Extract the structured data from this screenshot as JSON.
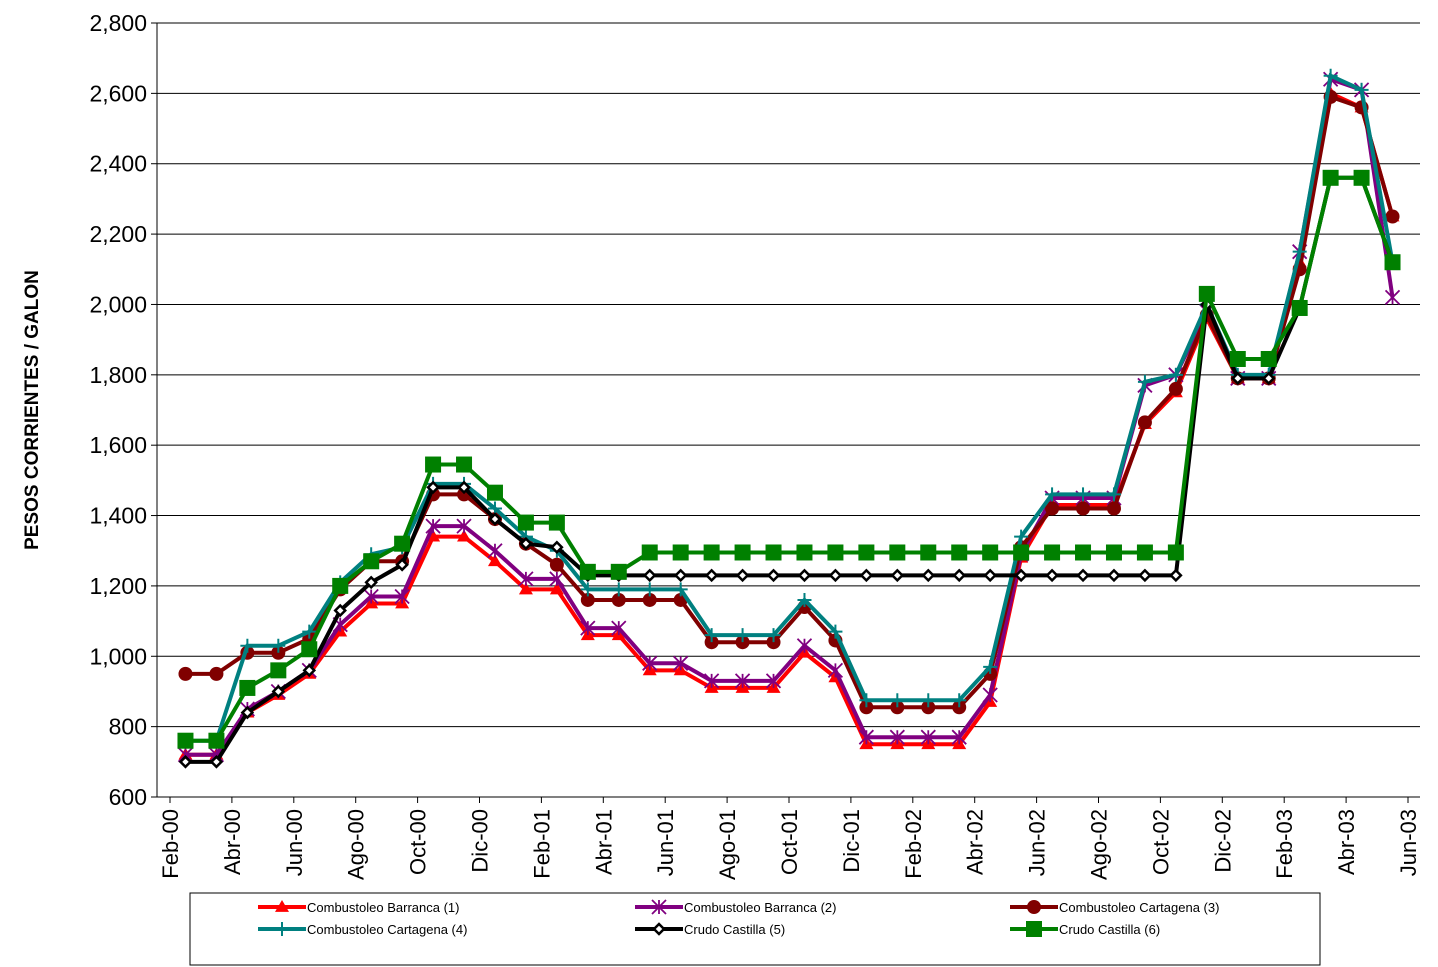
{
  "chart_data": {
    "type": "line",
    "y_label": "PESOS CORRIENTES / GALON",
    "categories": [
      "Feb-00",
      null,
      "Abr-00",
      null,
      "Jun-00",
      null,
      "Ago-00",
      null,
      "Oct-00",
      null,
      "Dic-00",
      null,
      "Feb-01",
      null,
      "Abr-01",
      null,
      "Jun-01",
      null,
      "Ago-01",
      null,
      "Oct-01",
      null,
      "Dic-01",
      null,
      "Feb-02",
      null,
      "Abr-02",
      null,
      "Jun-02",
      null,
      "Ago-02",
      null,
      "Oct-02",
      null,
      "Dic-02",
      null,
      "Feb-03",
      null,
      "Abr-03",
      null,
      "Jun-03"
    ],
    "ylim": [
      600,
      2800
    ],
    "yticks": [
      600,
      800,
      {
        "value": 1000,
        "label": "1,000"
      },
      {
        "value": 1200,
        "label": "1,200"
      },
      {
        "value": 1400,
        "label": "1,400"
      },
      {
        "value": 1600,
        "label": "1,600"
      },
      {
        "value": 1800,
        "label": "1,800"
      },
      {
        "value": 2000,
        "label": "2,000"
      },
      {
        "value": 2200,
        "label": "2,200"
      },
      {
        "value": 2400,
        "label": "2,400"
      },
      {
        "value": 2600,
        "label": "2,600"
      },
      {
        "value": 2800,
        "label": "2,800"
      }
    ],
    "grid": true,
    "legend": "bottom",
    "series": [
      {
        "name": "Combustoleo Barranca (1)",
        "color": "#ff0000",
        "marker": "triangle",
        "values": [
          720,
          720,
          840,
          890,
          950,
          1070,
          1150,
          1150,
          1340,
          1340,
          1270,
          1190,
          1190,
          1060,
          1060,
          960,
          960,
          910,
          910,
          910,
          1010,
          940,
          750,
          750,
          750,
          750,
          870,
          1280,
          1430,
          1430,
          1430,
          1660,
          1750,
          1960,
          1790,
          1790,
          2120,
          2600,
          2560,
          2250,
          null
        ]
      },
      {
        "name": "Combustoleo Barranca (2)",
        "color": "#800080",
        "marker": "star",
        "values": [
          720,
          720,
          850,
          900,
          960,
          1090,
          1170,
          1170,
          1370,
          1370,
          1300,
          1220,
          1220,
          1080,
          1080,
          980,
          980,
          930,
          930,
          930,
          1030,
          960,
          770,
          770,
          770,
          770,
          890,
          1290,
          1450,
          1450,
          1450,
          1770,
          1800,
          1980,
          1790,
          1790,
          2150,
          2640,
          2610,
          2020,
          null
        ]
      },
      {
        "name": "Combustoleo Cartagena (3)",
        "color": "#800000",
        "marker": "circle",
        "values": [
          950,
          950,
          1010,
          1010,
          1050,
          1190,
          1270,
          1270,
          1460,
          1460,
          1390,
          1320,
          1260,
          1160,
          1160,
          1160,
          1160,
          1040,
          1040,
          1040,
          1140,
          1045,
          855,
          855,
          855,
          855,
          950,
          1310,
          1420,
          1420,
          1420,
          1665,
          1760,
          1970,
          1790,
          1790,
          2100,
          2590,
          2560,
          2250,
          null
        ]
      },
      {
        "name": "Combustoleo Cartagena (4)",
        "color": "#008080",
        "marker": "plus",
        "values": [
          760,
          760,
          1030,
          1030,
          1070,
          1210,
          1290,
          1310,
          1490,
          1490,
          1420,
          1340,
          1300,
          1190,
          1190,
          1190,
          1190,
          1060,
          1060,
          1060,
          1160,
          1070,
          875,
          875,
          875,
          875,
          970,
          1340,
          1460,
          1460,
          1460,
          1780,
          1800,
          2000,
          1800,
          1800,
          2150,
          2650,
          2610,
          2120,
          null
        ]
      },
      {
        "name": "Crudo Castilla (5)",
        "color": "#000000",
        "marker": "diamond",
        "values": [
          700,
          700,
          840,
          900,
          960,
          1130,
          1210,
          1260,
          1480,
          1480,
          1390,
          1320,
          1310,
          1230,
          1230,
          1230,
          1230,
          1230,
          1230,
          1230,
          1230,
          1230,
          1230,
          1230,
          1230,
          1230,
          1230,
          1230,
          1230,
          1230,
          1230,
          1230,
          1230,
          2000,
          1790,
          1790,
          1990,
          2360,
          2360,
          2120,
          null
        ]
      },
      {
        "name": "Crudo Castilla (6)",
        "color": "#008000",
        "marker": "square",
        "values": [
          760,
          760,
          910,
          960,
          1020,
          1200,
          1270,
          1320,
          1545,
          1545,
          1465,
          1380,
          1380,
          1240,
          1240,
          1295,
          1295,
          1295,
          1295,
          1295,
          1295,
          1295,
          1295,
          1295,
          1295,
          1295,
          1295,
          1295,
          1295,
          1295,
          1295,
          1295,
          1295,
          2030,
          1845,
          1845,
          1990,
          2360,
          2360,
          2120,
          null
        ]
      }
    ]
  }
}
